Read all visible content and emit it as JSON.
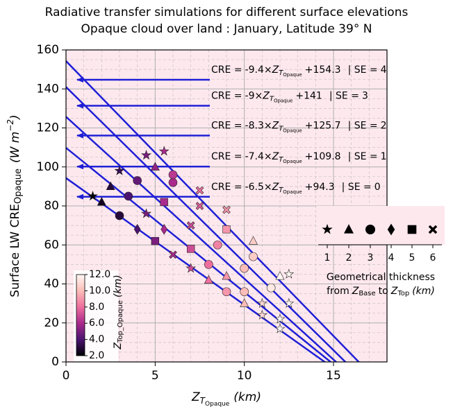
{
  "chart_data": {
    "type": "scatter",
    "title": "Radiative transfer simulations for different surface elevations",
    "subtitle": "Opaque cloud over land : January, Latitude 39° N",
    "x_label": {
      "z": "Z",
      "sub": "T",
      "subsub": "Opaque",
      "unit": "(km)"
    },
    "y_label": {
      "text": "Surface LW CRE",
      "sub": "Opaque",
      "unit": "(W m",
      "exp": "−2",
      "close": ")"
    },
    "xlim": [
      0,
      18
    ],
    "xticks": [
      0,
      5,
      10,
      15
    ],
    "ylim": [
      0,
      160
    ],
    "yticks": [
      0,
      20,
      40,
      60,
      80,
      100,
      120,
      140,
      160
    ],
    "grid": true,
    "minor_grid": true,
    "xminor": 1,
    "yminor": 5,
    "background": "#fde8ee",
    "line_color": "#1f1fd6",
    "fit_text": {
      "lhs": "CRE =",
      "times": "×",
      "plus": "+",
      "se": "| SE ="
    },
    "fits": [
      {
        "slope": -9.4,
        "intercept": 154.3,
        "se": 4
      },
      {
        "slope": -9.0,
        "intercept": 141.0,
        "se": 3
      },
      {
        "slope": -8.3,
        "intercept": 125.7,
        "se": 2
      },
      {
        "slope": -7.4,
        "intercept": 109.8,
        "se": 1
      },
      {
        "slope": -6.5,
        "intercept": 94.3,
        "se": 0
      }
    ],
    "colorbar": {
      "label": {
        "z": "Z",
        "sub": "Top_Opaque",
        "unit": "(km)"
      },
      "lim": [
        2,
        12
      ],
      "ticks": [
        {
          "value": 2,
          "label": "2.0"
        },
        {
          "value": 4,
          "label": "4.0"
        },
        {
          "value": 6,
          "label": "6.0"
        },
        {
          "value": 8,
          "label": "8.0"
        },
        {
          "value": 10,
          "label": "10.0"
        },
        {
          "value": 12,
          "label": "12.0"
        }
      ],
      "colormap": [
        {
          "value": 2,
          "color": "#000004"
        },
        {
          "value": 4,
          "color": "#4b1470"
        },
        {
          "value": 6,
          "color": "#a92a8c"
        },
        {
          "value": 8,
          "color": "#ee6f9e"
        },
        {
          "value": 10,
          "color": "#fbbdb8"
        },
        {
          "value": 12,
          "color": "#fff7f2"
        }
      ]
    },
    "legend": {
      "markers": [
        "star",
        "triangle",
        "circle",
        "diamond",
        "square",
        "x"
      ],
      "labels": [
        "1",
        "2",
        "3",
        "4",
        "5",
        "6"
      ],
      "title": "Geometrical thickness",
      "line2": {
        "from": "from",
        "z": "Z",
        "base": "Base",
        "to": "to",
        "top": "Top",
        "unit": "(km)"
      }
    },
    "points": {
      "x": [
        1.5,
        2,
        3,
        4,
        5,
        6,
        7,
        8,
        9,
        10,
        11,
        12,
        2.5,
        3.5,
        4.5,
        5.5,
        7,
        8,
        9,
        10,
        11,
        12,
        3,
        4,
        5.5,
        7,
        8.5,
        10,
        11.5,
        12.5,
        4.5,
        5,
        6,
        7.5,
        9,
        10.5,
        12,
        5.5,
        6,
        7.5,
        9,
        10.5,
        12.5
      ],
      "y": [
        85,
        82,
        75,
        68,
        62,
        55,
        48,
        42,
        36,
        30,
        24,
        17,
        90,
        85,
        76,
        68,
        58,
        50,
        44,
        36,
        30,
        22,
        98,
        93,
        82,
        70,
        60,
        48,
        38,
        30,
        106,
        100,
        92,
        80,
        68,
        54,
        44,
        108,
        96,
        88,
        78,
        62,
        45
      ],
      "z": [
        2,
        2.5,
        3,
        4,
        5,
        6,
        7,
        8,
        9,
        10,
        11,
        12,
        3,
        4,
        5,
        6,
        7,
        8,
        9,
        10,
        11,
        12,
        3.5,
        4.5,
        6,
        7,
        8.5,
        10,
        11.5,
        12,
        5,
        5.5,
        6,
        7.5,
        9,
        10.5,
        12,
        6,
        6.5,
        8,
        9,
        10.5,
        12
      ],
      "thickness": [
        1,
        2,
        3,
        4,
        5,
        6,
        1,
        2,
        3,
        2,
        1,
        1,
        2,
        3,
        1,
        4,
        5,
        3,
        2,
        3,
        1,
        1,
        1,
        3,
        5,
        6,
        3,
        3,
        3,
        1,
        1,
        2,
        3,
        6,
        5,
        3,
        2,
        1,
        3,
        6,
        6,
        2,
        1
      ]
    }
  }
}
